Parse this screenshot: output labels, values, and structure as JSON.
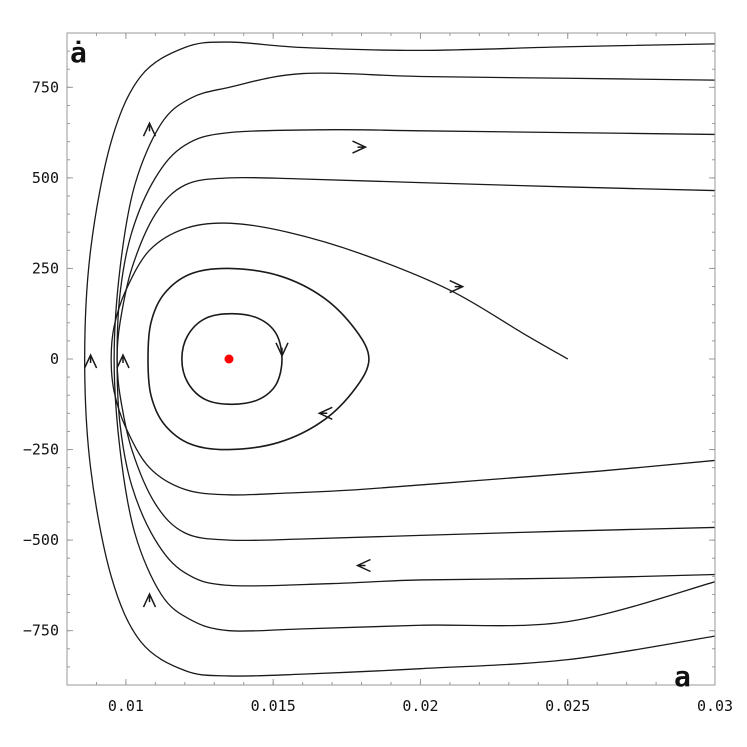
{
  "chart_data": {
    "type": "line",
    "title": "",
    "xlabel": "a",
    "ylabel": "ȧ",
    "xlim": [
      0.008,
      0.03
    ],
    "ylim": [
      -900,
      900
    ],
    "xticks": [
      0.01,
      0.015,
      0.02,
      0.025,
      0.03
    ],
    "xtick_labels": [
      "0.01",
      "0.015",
      "0.02",
      "0.025",
      "0.03"
    ],
    "yticks": [
      -750,
      -500,
      -250,
      0,
      250,
      500,
      750
    ],
    "ytick_labels": [
      "−750",
      "−500",
      "−250",
      "0",
      "250",
      "500",
      "750"
    ],
    "grid": false,
    "equilibrium": {
      "x": 0.0135,
      "y": 0,
      "color": "#ff0000"
    },
    "closed_orbits": [
      {
        "points": [
          [
            0.0153,
            0
          ],
          [
            0.0151,
            70
          ],
          [
            0.0145,
            112
          ],
          [
            0.0136,
            125
          ],
          [
            0.0127,
            112
          ],
          [
            0.0121,
            65
          ],
          [
            0.0119,
            0
          ],
          [
            0.0121,
            -65
          ],
          [
            0.0127,
            -112
          ],
          [
            0.0136,
            -125
          ],
          [
            0.0145,
            -112
          ],
          [
            0.0151,
            -70
          ]
        ]
      },
      {
        "points": [
          [
            0.01825,
            0
          ],
          [
            0.0178,
            80
          ],
          [
            0.0167,
            170
          ],
          [
            0.0152,
            230
          ],
          [
            0.0135,
            250
          ],
          [
            0.0122,
            235
          ],
          [
            0.0113,
            180
          ],
          [
            0.01085,
            100
          ],
          [
            0.01075,
            0
          ],
          [
            0.01085,
            -100
          ],
          [
            0.0113,
            -180
          ],
          [
            0.0122,
            -235
          ],
          [
            0.0135,
            -250
          ],
          [
            0.0152,
            -230
          ],
          [
            0.0167,
            -170
          ],
          [
            0.0178,
            -80
          ]
        ]
      }
    ],
    "flow_lines": [
      {
        "points": [
          [
            0.025,
            0
          ],
          [
            0.0235,
            70
          ],
          [
            0.021,
            190
          ],
          [
            0.018,
            290
          ],
          [
            0.0155,
            350
          ],
          [
            0.0135,
            375
          ],
          [
            0.012,
            360
          ],
          [
            0.0108,
            300
          ],
          [
            0.01,
            190
          ],
          [
            0.0096,
            90
          ],
          [
            0.0095,
            0
          ],
          [
            0.0096,
            -90
          ],
          [
            0.01,
            -190
          ],
          [
            0.0108,
            -300
          ],
          [
            0.012,
            -360
          ],
          [
            0.0135,
            -375
          ],
          [
            0.0155,
            -370
          ],
          [
            0.018,
            -360
          ],
          [
            0.022,
            -335
          ],
          [
            0.026,
            -310
          ],
          [
            0.03,
            -280
          ]
        ]
      },
      {
        "points": [
          [
            0.03,
            465
          ],
          [
            0.025,
            475
          ],
          [
            0.02,
            487
          ],
          [
            0.016,
            497
          ],
          [
            0.0135,
            500
          ],
          [
            0.012,
            480
          ],
          [
            0.011,
            400
          ],
          [
            0.0102,
            250
          ],
          [
            0.0098,
            100
          ],
          [
            0.0097,
            0
          ],
          [
            0.0098,
            -100
          ],
          [
            0.0102,
            -250
          ],
          [
            0.011,
            -400
          ],
          [
            0.012,
            -480
          ],
          [
            0.0135,
            -500
          ],
          [
            0.016,
            -497
          ],
          [
            0.02,
            -487
          ],
          [
            0.025,
            -475
          ],
          [
            0.03,
            -465
          ]
        ]
      },
      {
        "points": [
          [
            0.03,
            620
          ],
          [
            0.025,
            625
          ],
          [
            0.02,
            630
          ],
          [
            0.017,
            633
          ],
          [
            0.0135,
            625
          ],
          [
            0.012,
            590
          ],
          [
            0.011,
            500
          ],
          [
            0.0102,
            350
          ],
          [
            0.0098,
            180
          ],
          [
            0.0097,
            0
          ],
          [
            0.0098,
            -180
          ],
          [
            0.0102,
            -350
          ],
          [
            0.011,
            -500
          ],
          [
            0.012,
            -590
          ],
          [
            0.0135,
            -625
          ],
          [
            0.017,
            -620
          ],
          [
            0.02,
            -610
          ],
          [
            0.025,
            -605
          ],
          [
            0.03,
            -595
          ]
        ]
      },
      {
        "points": [
          [
            0.03,
            770
          ],
          [
            0.025,
            775
          ],
          [
            0.02,
            780
          ],
          [
            0.016,
            788
          ],
          [
            0.0135,
            750
          ],
          [
            0.0122,
            720
          ],
          [
            0.0112,
            650
          ],
          [
            0.0103,
            480
          ],
          [
            0.0098,
            250
          ],
          [
            0.0096,
            0
          ],
          [
            0.0098,
            -250
          ],
          [
            0.0103,
            -480
          ],
          [
            0.0112,
            -650
          ],
          [
            0.0122,
            -720
          ],
          [
            0.0135,
            -750
          ],
          [
            0.016,
            -745
          ],
          [
            0.02,
            -735
          ],
          [
            0.025,
            -725
          ],
          [
            0.03,
            -615
          ]
        ]
      },
      {
        "points": [
          [
            0.03,
            870
          ],
          [
            0.025,
            862
          ],
          [
            0.02,
            852
          ],
          [
            0.016,
            860
          ],
          [
            0.0135,
            875
          ],
          [
            0.012,
            860
          ],
          [
            0.0105,
            780
          ],
          [
            0.0095,
            600
          ],
          [
            0.0088,
            300
          ],
          [
            0.0086,
            0
          ],
          [
            0.0088,
            -300
          ],
          [
            0.0095,
            -600
          ],
          [
            0.0105,
            -780
          ],
          [
            0.012,
            -860
          ],
          [
            0.0135,
            -875
          ],
          [
            0.016,
            -870
          ],
          [
            0.02,
            -855
          ],
          [
            0.025,
            -830
          ],
          [
            0.03,
            -765
          ]
        ]
      }
    ],
    "arrows": [
      {
        "x": 0.0153,
        "y": 20,
        "dir": "down"
      },
      {
        "x": 0.0167,
        "y": -150,
        "dir": "left"
      },
      {
        "x": 0.0213,
        "y": 200,
        "dir": "right"
      },
      {
        "x": 0.018,
        "y": 585,
        "dir": "right"
      },
      {
        "x": 0.0108,
        "y": 640,
        "dir": "up"
      },
      {
        "x": 0.0099,
        "y": 0,
        "dir": "up"
      },
      {
        "x": 0.0088,
        "y": 0,
        "dir": "up"
      },
      {
        "x": 0.018,
        "y": -570,
        "dir": "left"
      },
      {
        "x": 0.0108,
        "y": -660,
        "dir": "up"
      }
    ]
  }
}
